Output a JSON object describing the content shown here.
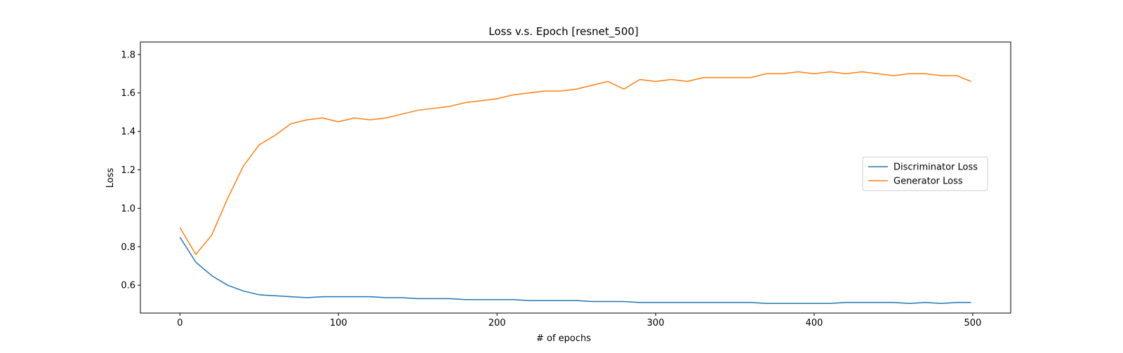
{
  "chart_data": {
    "type": "line",
    "title": "Loss v.s. Epoch [resnet_500]",
    "xlabel": "# of epochs",
    "ylabel": "Loss",
    "xlim": [
      -24.95,
      523.95
    ],
    "ylim": [
      0.455,
      1.865
    ],
    "xticks": [
      0,
      100,
      200,
      300,
      400,
      500
    ],
    "yticks": [
      0.6,
      0.8,
      1.0,
      1.2,
      1.4,
      1.6,
      1.8
    ],
    "xtick_labels": [
      "0",
      "100",
      "200",
      "300",
      "400",
      "500"
    ],
    "ytick_labels": [
      "0.6",
      "0.8",
      "1.0",
      "1.2",
      "1.4",
      "1.6",
      "1.8"
    ],
    "grid": false,
    "legend_position": "center-right",
    "x": [
      0,
      10,
      20,
      30,
      40,
      50,
      60,
      70,
      80,
      90,
      100,
      110,
      120,
      130,
      140,
      150,
      160,
      170,
      180,
      190,
      200,
      210,
      220,
      230,
      240,
      250,
      260,
      270,
      280,
      290,
      300,
      310,
      320,
      330,
      340,
      350,
      360,
      370,
      380,
      390,
      400,
      410,
      420,
      430,
      440,
      450,
      460,
      470,
      480,
      490,
      499
    ],
    "series": [
      {
        "name": "Discriminator Loss",
        "color": "#1f77b4",
        "values": [
          0.85,
          0.72,
          0.65,
          0.6,
          0.57,
          0.55,
          0.545,
          0.54,
          0.535,
          0.54,
          0.54,
          0.54,
          0.54,
          0.535,
          0.535,
          0.53,
          0.53,
          0.53,
          0.525,
          0.525,
          0.525,
          0.525,
          0.52,
          0.52,
          0.52,
          0.52,
          0.515,
          0.515,
          0.515,
          0.51,
          0.51,
          0.51,
          0.51,
          0.51,
          0.51,
          0.51,
          0.51,
          0.505,
          0.505,
          0.505,
          0.505,
          0.505,
          0.51,
          0.51,
          0.51,
          0.51,
          0.505,
          0.51,
          0.505,
          0.51,
          0.51
        ]
      },
      {
        "name": "Generator Loss",
        "color": "#ff7f0e",
        "values": [
          0.9,
          0.76,
          0.86,
          1.05,
          1.22,
          1.33,
          1.38,
          1.44,
          1.46,
          1.47,
          1.45,
          1.47,
          1.46,
          1.47,
          1.49,
          1.51,
          1.52,
          1.53,
          1.55,
          1.56,
          1.57,
          1.59,
          1.6,
          1.61,
          1.61,
          1.62,
          1.64,
          1.66,
          1.62,
          1.67,
          1.66,
          1.67,
          1.66,
          1.68,
          1.68,
          1.68,
          1.68,
          1.7,
          1.7,
          1.71,
          1.7,
          1.71,
          1.7,
          1.71,
          1.7,
          1.69,
          1.7,
          1.7,
          1.69,
          1.69,
          1.66
        ]
      }
    ]
  }
}
